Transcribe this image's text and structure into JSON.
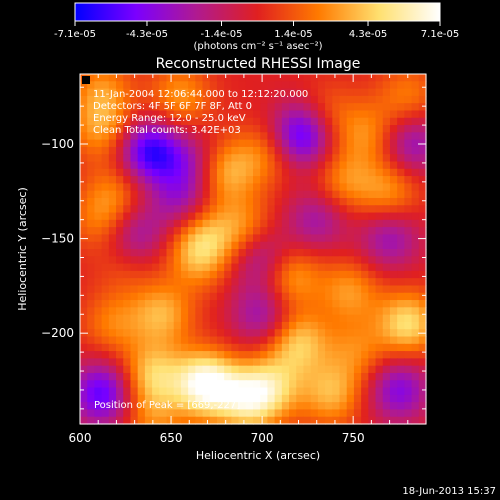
{
  "colorbar": {
    "ticks": [
      "-7.1e-05",
      "-4.3e-05",
      "-1.4e-05",
      "1.4e-05",
      "4.3e-05",
      "7.1e-05"
    ],
    "tick_values": [
      -7.1e-05,
      -4.3e-05,
      -1.4e-05,
      1.4e-05,
      4.3e-05,
      7.1e-05
    ],
    "range": [
      -7.1e-05,
      7.1e-05
    ],
    "units_label": "(photons cm⁻² s⁻¹ asec⁻²)",
    "colormap": [
      "#0000ff",
      "#7b00ff",
      "#b01a90",
      "#e02020",
      "#ff7a00",
      "#ffe070",
      "#ffffff"
    ]
  },
  "chart_data": {
    "type": "heatmap",
    "title": "Reconstructed RHESSI Image",
    "xlabel": "Heliocentric X (arcsec)",
    "ylabel": "Heliocentric Y (arcsec)",
    "xlim": [
      600,
      790
    ],
    "ylim": [
      -248,
      -63
    ],
    "x_ticks": [
      600,
      650,
      700,
      750
    ],
    "y_ticks": [
      -100,
      -150,
      -200
    ],
    "x_tick_labels": [
      "600",
      "650",
      "700",
      "750"
    ],
    "y_tick_labels": [
      "−100",
      "−150",
      "−200"
    ],
    "annotations": [
      "11-Jan-2004 12:06:44.000 to 12:12:20.000",
      "Detectors: 4F 5F 6F 7F 8F, Att 0",
      "Energy Range: 12.0 - 25.0 keV",
      "Clean     Total counts: 3.42E+03"
    ],
    "peak_label": "Position of Peak = [669,-227]",
    "peak": [
      669,
      -227
    ],
    "blobs": [
      {
        "x": 612,
        "y": -232,
        "v": -0.9
      },
      {
        "x": 618,
        "y": -195,
        "v": 0.4
      },
      {
        "x": 625,
        "y": -165,
        "v": 0.2
      },
      {
        "x": 630,
        "y": -148,
        "v": -0.55
      },
      {
        "x": 612,
        "y": -140,
        "v": 0.4
      },
      {
        "x": 620,
        "y": -125,
        "v": 0.35
      },
      {
        "x": 638,
        "y": -104,
        "v": -1.0
      },
      {
        "x": 612,
        "y": -92,
        "v": 0.5
      },
      {
        "x": 655,
        "y": -75,
        "v": 0.5
      },
      {
        "x": 612,
        "y": -72,
        "v": 0.45
      },
      {
        "x": 640,
        "y": -222,
        "v": 0.7
      },
      {
        "x": 645,
        "y": -190,
        "v": 0.6
      },
      {
        "x": 655,
        "y": -130,
        "v": -0.5
      },
      {
        "x": 660,
        "y": -110,
        "v": -0.45
      },
      {
        "x": 669,
        "y": -227,
        "v": 1.2
      },
      {
        "x": 665,
        "y": -160,
        "v": 0.5
      },
      {
        "x": 668,
        "y": -148,
        "v": 0.45
      },
      {
        "x": 680,
        "y": -115,
        "v": 0.6
      },
      {
        "x": 690,
        "y": -145,
        "v": 0.5
      },
      {
        "x": 692,
        "y": -235,
        "v": 0.85
      },
      {
        "x": 700,
        "y": -190,
        "v": -0.55
      },
      {
        "x": 700,
        "y": -160,
        "v": -0.6
      },
      {
        "x": 702,
        "y": -105,
        "v": 0.4
      },
      {
        "x": 715,
        "y": -170,
        "v": 0.6
      },
      {
        "x": 720,
        "y": -205,
        "v": 0.7
      },
      {
        "x": 722,
        "y": -95,
        "v": -1.0
      },
      {
        "x": 730,
        "y": -140,
        "v": -0.5
      },
      {
        "x": 738,
        "y": -232,
        "v": 0.6
      },
      {
        "x": 745,
        "y": -120,
        "v": 0.45
      },
      {
        "x": 748,
        "y": -178,
        "v": 0.5
      },
      {
        "x": 752,
        "y": -210,
        "v": 0.4
      },
      {
        "x": 758,
        "y": -95,
        "v": 0.45
      },
      {
        "x": 770,
        "y": -150,
        "v": -0.55
      },
      {
        "x": 770,
        "y": -125,
        "v": 0.5
      },
      {
        "x": 775,
        "y": -230,
        "v": -0.7
      },
      {
        "x": 780,
        "y": -195,
        "v": 0.8
      },
      {
        "x": 782,
        "y": -100,
        "v": -0.6
      },
      {
        "x": 780,
        "y": -75,
        "v": 0.4
      },
      {
        "x": 735,
        "y": -85,
        "v": 0.35
      },
      {
        "x": 640,
        "y": -245,
        "v": 0.4
      },
      {
        "x": 706,
        "y": -228,
        "v": 0.6
      }
    ],
    "grid": false
  },
  "footer": {
    "timestamp": "18-Jun-2013 15:37"
  }
}
